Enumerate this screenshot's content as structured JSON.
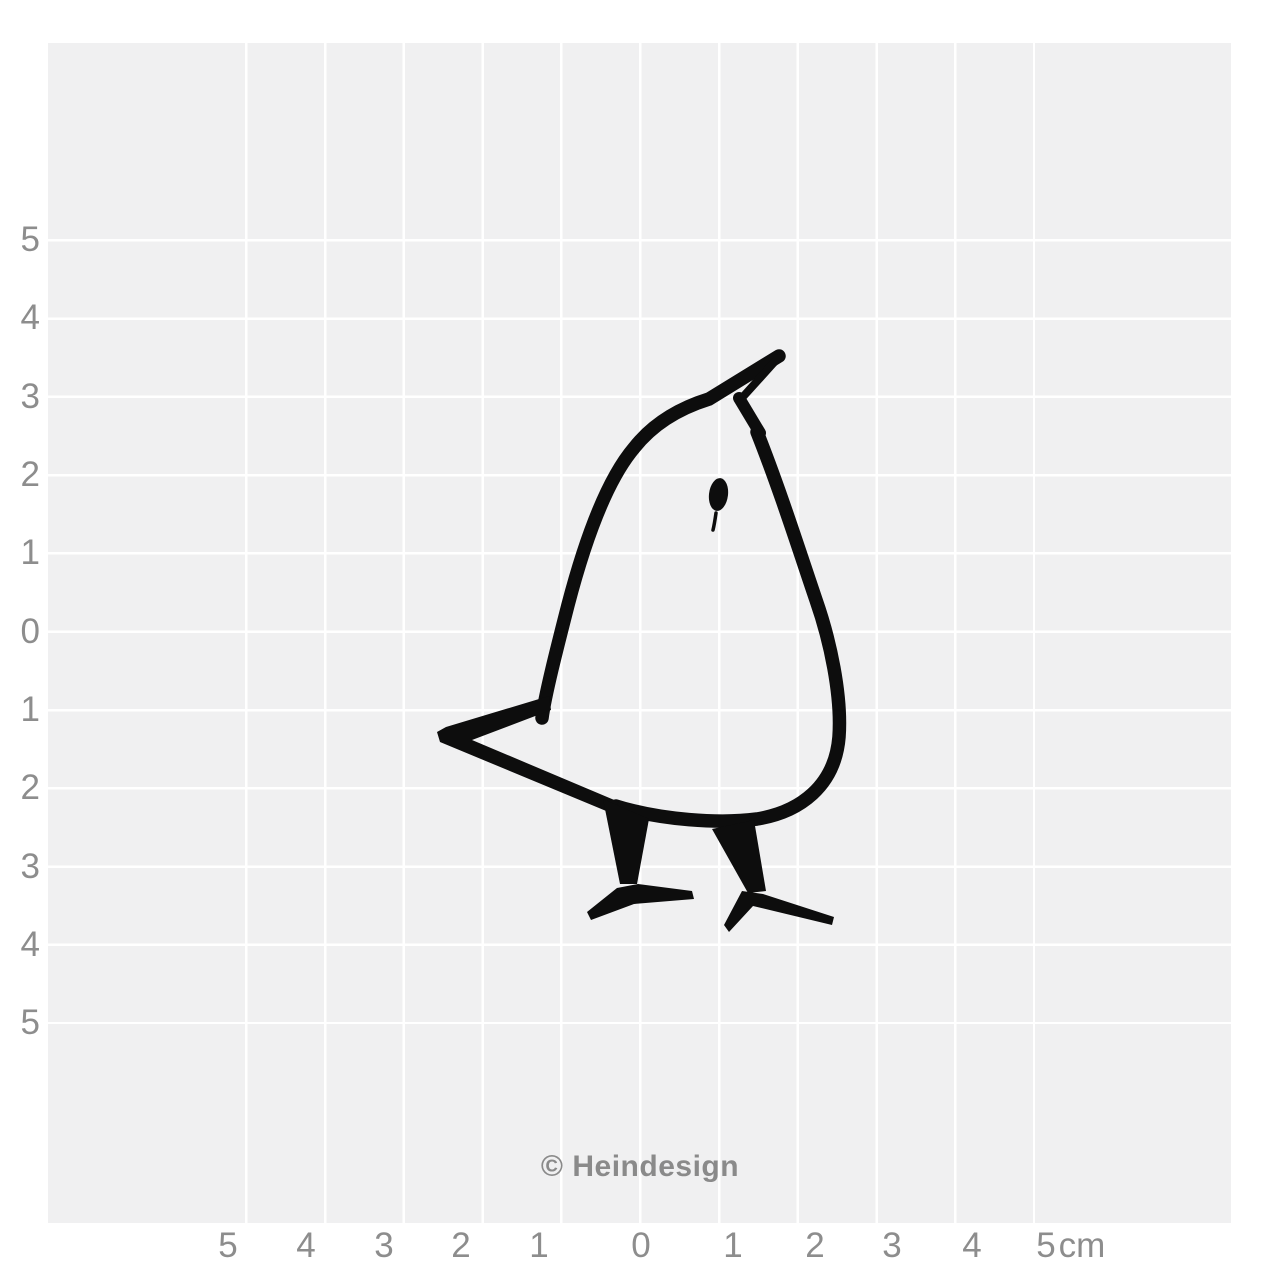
{
  "ruler": {
    "y_axis_labels": [
      "5",
      "4",
      "3",
      "2",
      "1",
      "0",
      "1",
      "2",
      "3",
      "4",
      "5"
    ],
    "x_axis_labels": [
      "5",
      "4",
      "3",
      "2",
      "1",
      "0",
      "1",
      "2",
      "3",
      "4",
      "5"
    ],
    "unit_label": "cm"
  },
  "watermark": {
    "text": "© Heindesign"
  },
  "illustration": {
    "icon": "bird-chick-stamp-icon"
  },
  "colors": {
    "page_background": "#ffffff",
    "grid_background": "#f0f0f1",
    "grid_line": "#ffffff",
    "axis_label": "#8d8d8d",
    "watermark_text": "#8a8a8a",
    "ink": "#0d0d0d"
  }
}
